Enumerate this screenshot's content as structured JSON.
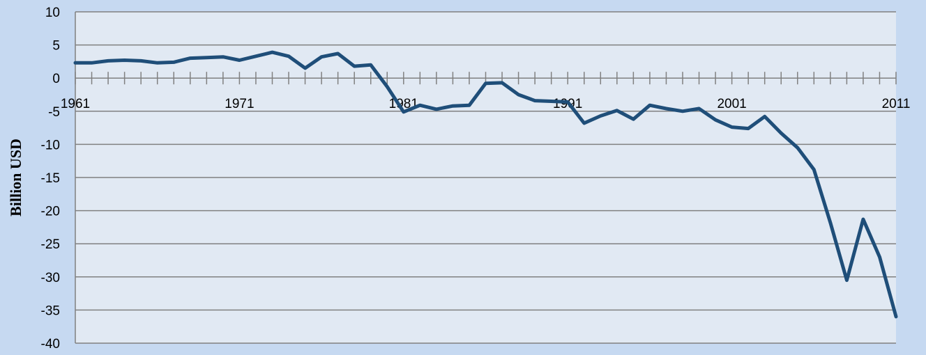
{
  "chart_data": {
    "type": "line",
    "title": "",
    "xlabel": "",
    "ylabel": "Billion USD",
    "ylim": [
      -40,
      10
    ],
    "yticks": [
      10,
      5,
      0,
      -5,
      -10,
      -15,
      -20,
      -25,
      -30,
      -35,
      -40
    ],
    "xlim": [
      1961,
      2011
    ],
    "xtick_labels": [
      "1961",
      "1971",
      "1981",
      "1991",
      "2001",
      "2011"
    ],
    "grid": "horizontal",
    "legend": "none",
    "colors": {
      "page_background": "#c6d9f1",
      "plot_background": "#e1e9f3",
      "line": "#1f4e79",
      "grid": "#808080"
    },
    "series": [
      {
        "x": [
          1961,
          1962,
          1963,
          1964,
          1965,
          1966,
          1967,
          1968,
          1969,
          1970,
          1971,
          1972,
          1973,
          1974,
          1975,
          1976,
          1977,
          1978,
          1979,
          1980,
          1981,
          1982,
          1983,
          1984,
          1985,
          1986,
          1987,
          1988,
          1989,
          1990,
          1991,
          1992,
          1993,
          1994,
          1995,
          1996,
          1997,
          1998,
          1999,
          2000,
          2001,
          2002,
          2003,
          2004,
          2005,
          2006,
          2007,
          2008,
          2009,
          2010,
          2011
        ],
        "values": [
          2.3,
          2.3,
          2.6,
          2.7,
          2.6,
          2.3,
          2.4,
          3.0,
          3.1,
          3.2,
          2.7,
          3.3,
          3.9,
          3.3,
          1.5,
          3.2,
          3.7,
          1.8,
          2.0,
          -1.3,
          -5.1,
          -4.1,
          -4.7,
          -4.2,
          -4.1,
          -0.8,
          -0.7,
          -2.5,
          -3.4,
          -3.5,
          -3.6,
          -6.8,
          -5.7,
          -4.9,
          -6.2,
          -4.1,
          -4.6,
          -5.0,
          -4.6,
          -6.3,
          -7.4,
          -7.6,
          -5.8,
          -8.3,
          -10.5,
          -13.8,
          -21.8,
          -30.5,
          -21.3,
          -27.0,
          -36.0
        ]
      }
    ]
  }
}
